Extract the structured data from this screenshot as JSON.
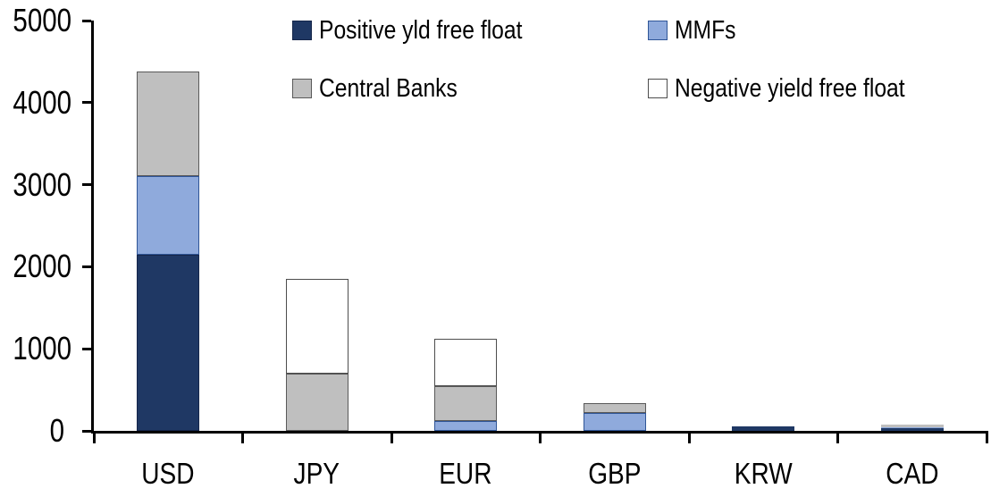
{
  "chart_data": {
    "type": "bar",
    "stacked": true,
    "title": "",
    "categories": [
      "USD",
      "JPY",
      "EUR",
      "GBP",
      "KRW",
      "CAD"
    ],
    "series": [
      {
        "name": "Positive yld free float",
        "color": "#1F3864",
        "border_color": "#15264A",
        "values": [
          2150,
          0,
          0,
          0,
          50,
          35
        ]
      },
      {
        "name": "MMFs",
        "color": "#8FAADC",
        "border_color": "#2F5597",
        "values": [
          950,
          0,
          120,
          220,
          0,
          10
        ]
      },
      {
        "name": "Central Banks",
        "color": "#BFBFBF",
        "border_color": "#595959",
        "values": [
          1280,
          700,
          425,
          120,
          0,
          30
        ]
      },
      {
        "name": "Negative yield free float",
        "color": "#FFFFFF",
        "border_color": "#4D4D4D",
        "values": [
          0,
          1150,
          575,
          0,
          0,
          0
        ]
      }
    ],
    "totals_by_category": [
      4380,
      1850,
      1120,
      340,
      50,
      75
    ],
    "ylim": [
      0,
      5000
    ],
    "yticks": [
      0,
      1000,
      2000,
      3000,
      4000,
      5000
    ],
    "grid": false,
    "legend_position": "top",
    "axis_color": "#000000",
    "background_color": "#FFFFFF"
  }
}
